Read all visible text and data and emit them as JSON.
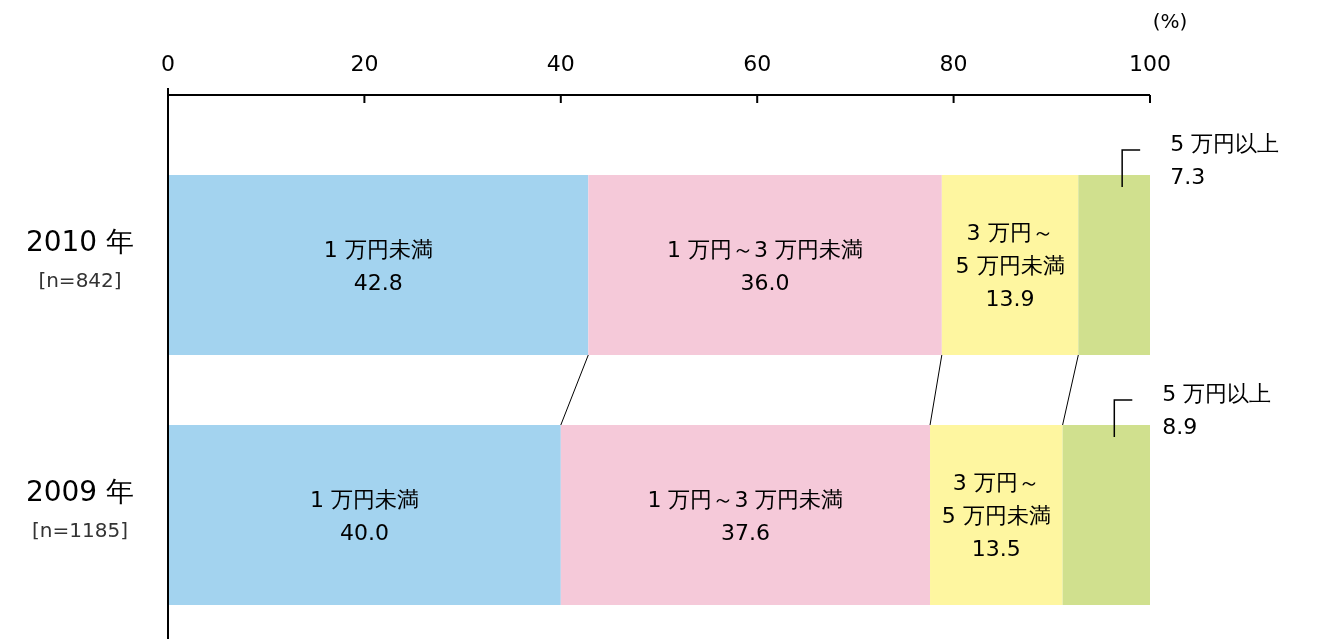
{
  "chart_data": {
    "type": "bar",
    "orientation": "horizontal",
    "stacked": true,
    "categories": [
      "2010 年\n[n=842]",
      "2009 年\n[n=1185]"
    ],
    "series": [
      {
        "name": "1 万円未満",
        "color": "#a3d3ef",
        "values": [
          42.8,
          40.0
        ],
        "value_labels": [
          "42.8",
          "40.0"
        ]
      },
      {
        "name": "1 万円～3 万円未満",
        "color": "#f5c9d9",
        "values": [
          36.0,
          37.6
        ],
        "value_labels": [
          "36.0",
          "37.6"
        ]
      },
      {
        "name": "3 万円～5 万円未満",
        "color": "#fef6a0",
        "values": [
          13.9,
          13.5
        ],
        "value_labels": [
          "13.9",
          "13.5"
        ]
      },
      {
        "name": "5 万円以上",
        "color": "#d0e08e",
        "values": [
          7.3,
          8.9
        ],
        "value_labels": [
          "7.3",
          "8.9"
        ]
      }
    ],
    "xlim": [
      0,
      100
    ],
    "xticks": [
      0,
      20,
      40,
      60,
      80,
      100
    ],
    "xlabel": "(%)",
    "grid": false
  }
}
